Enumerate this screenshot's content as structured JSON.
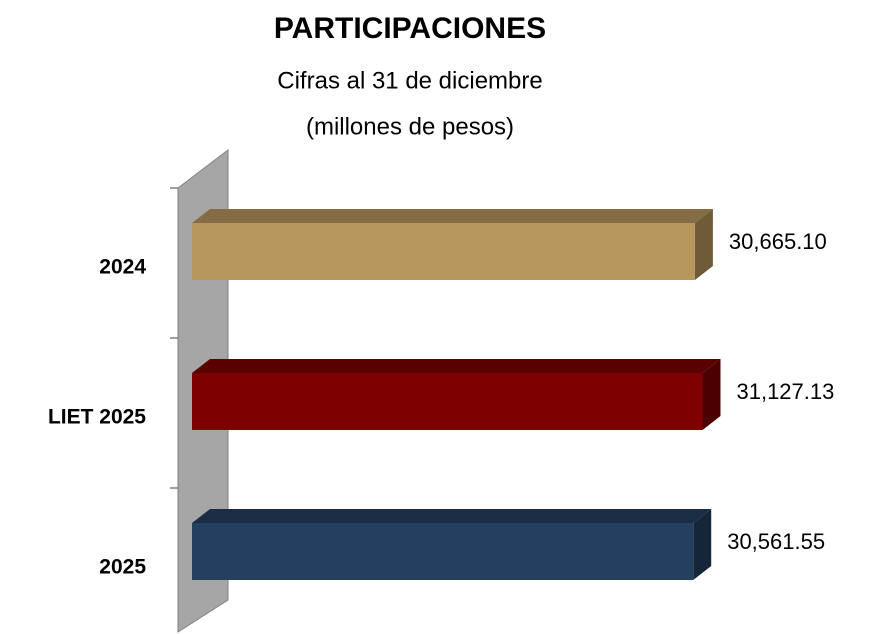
{
  "chart_data": {
    "type": "bar3d_horizontal",
    "title": "PARTICIPACIONES",
    "subtitle": [
      "Cifras al 31 de diciembre",
      "(millones de pesos)"
    ],
    "categories": [
      "2024",
      "LIET 2025",
      "2025"
    ],
    "values": [
      30665.1,
      31127.13,
      30561.55
    ],
    "value_labels": [
      "30,665.10",
      "31,127.13",
      "30,561.55"
    ],
    "colors": [
      "#b8975e",
      "#7f0000",
      "#243f60"
    ],
    "xlim": [
      0,
      35000
    ]
  }
}
